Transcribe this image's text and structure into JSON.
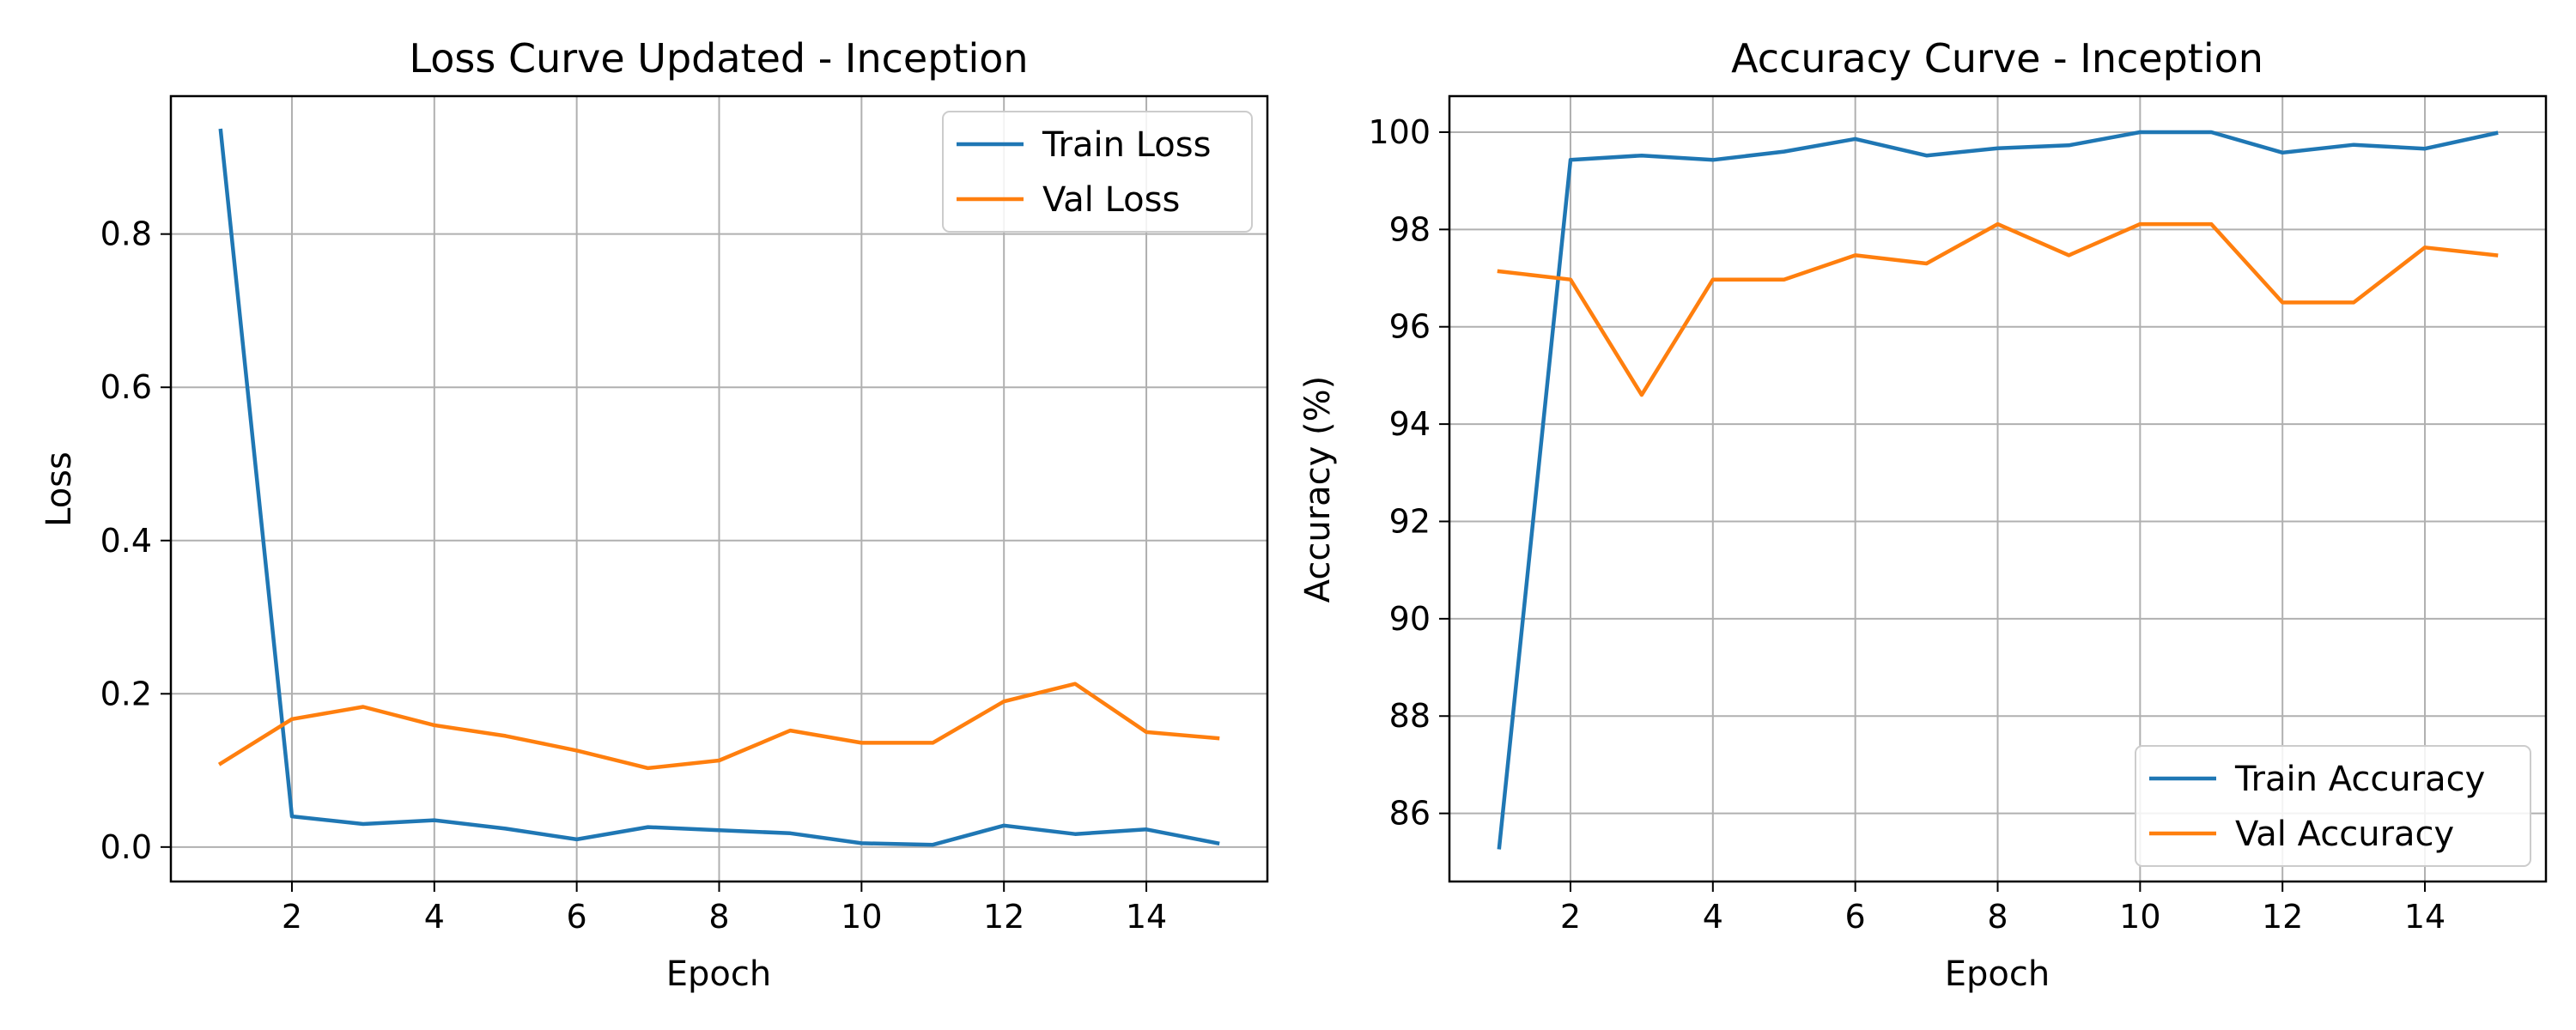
{
  "chart_data": [
    {
      "type": "line",
      "title": "Loss Curve Updated - Inception",
      "xlabel": "Epoch",
      "ylabel": "Loss",
      "x": [
        1,
        2,
        3,
        4,
        5,
        6,
        7,
        8,
        9,
        10,
        11,
        12,
        13,
        14,
        15
      ],
      "xlim": [
        0.3,
        15.7
      ],
      "ylim": [
        -0.045,
        0.98
      ],
      "xticks": [
        2,
        4,
        6,
        8,
        10,
        12,
        14
      ],
      "yticks": [
        0.0,
        0.2,
        0.4,
        0.6,
        0.8
      ],
      "ytick_labels": [
        "0.0",
        "0.2",
        "0.4",
        "0.6",
        "0.8"
      ],
      "grid": true,
      "legend_position": "top-right",
      "series": [
        {
          "name": "Train Loss",
          "color": "#1f77b4",
          "values": [
            0.935,
            0.04,
            0.03,
            0.035,
            0.024,
            0.01,
            0.026,
            0.022,
            0.018,
            0.005,
            0.003,
            0.028,
            0.017,
            0.023,
            0.005
          ]
        },
        {
          "name": "Val Loss",
          "color": "#ff7f0e",
          "values": [
            0.109,
            0.167,
            0.183,
            0.159,
            0.145,
            0.126,
            0.103,
            0.113,
            0.152,
            0.136,
            0.136,
            0.19,
            0.213,
            0.15,
            0.142
          ]
        }
      ]
    },
    {
      "type": "line",
      "title": "Accuracy Curve - Inception",
      "xlabel": "Epoch",
      "ylabel": "Accuracy (%)",
      "x": [
        1,
        2,
        3,
        4,
        5,
        6,
        7,
        8,
        9,
        10,
        11,
        12,
        13,
        14,
        15
      ],
      "xlim": [
        0.3,
        15.7
      ],
      "ylim": [
        84.6,
        100.74
      ],
      "xticks": [
        2,
        4,
        6,
        8,
        10,
        12,
        14
      ],
      "yticks": [
        86,
        88,
        90,
        92,
        94,
        96,
        98,
        100
      ],
      "ytick_labels": [
        "86",
        "88",
        "90",
        "92",
        "94",
        "96",
        "98",
        "100"
      ],
      "grid": true,
      "legend_position": "bottom-right",
      "series": [
        {
          "name": "Train Accuracy",
          "color": "#1f77b4",
          "values": [
            85.3,
            99.43,
            99.52,
            99.43,
            99.6,
            99.86,
            99.52,
            99.67,
            99.73,
            100.0,
            100.0,
            99.58,
            99.74,
            99.66,
            99.98
          ]
        },
        {
          "name": "Val Accuracy",
          "color": "#ff7f0e",
          "values": [
            97.14,
            96.97,
            94.6,
            96.97,
            96.97,
            97.47,
            97.3,
            98.11,
            97.47,
            98.11,
            98.11,
            96.5,
            96.5,
            97.63,
            97.47
          ]
        }
      ]
    }
  ]
}
